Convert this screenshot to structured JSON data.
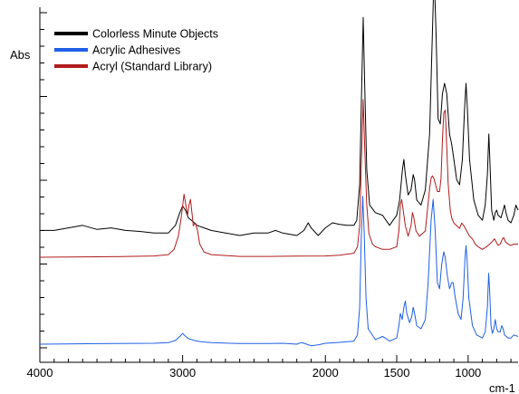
{
  "chart_data": {
    "type": "line",
    "ylabel": "Abs",
    "xlabel": "cm-1",
    "xlim": [
      4000,
      650
    ],
    "x_reversed": true,
    "x_ticks": [
      4000,
      3000,
      2000,
      1500,
      1000
    ],
    "legend_position": "top-left",
    "series": [
      {
        "name": "Colorless Minute Objects",
        "color": "#000000",
        "points": [
          [
            4000,
            0.21
          ],
          [
            3900,
            0.21
          ],
          [
            3800,
            0.215
          ],
          [
            3700,
            0.22
          ],
          [
            3600,
            0.212
          ],
          [
            3500,
            0.215
          ],
          [
            3400,
            0.21
          ],
          [
            3300,
            0.208
          ],
          [
            3200,
            0.205
          ],
          [
            3100,
            0.205
          ],
          [
            3050,
            0.22
          ],
          [
            3020,
            0.245
          ],
          [
            3000,
            0.258
          ],
          [
            2980,
            0.25
          ],
          [
            2960,
            0.235
          ],
          [
            2930,
            0.228
          ],
          [
            2900,
            0.22
          ],
          [
            2850,
            0.215
          ],
          [
            2800,
            0.21
          ],
          [
            2700,
            0.205
          ],
          [
            2600,
            0.2
          ],
          [
            2500,
            0.205
          ],
          [
            2400,
            0.205
          ],
          [
            2350,
            0.21
          ],
          [
            2300,
            0.205
          ],
          [
            2200,
            0.2
          ],
          [
            2150,
            0.21
          ],
          [
            2120,
            0.225
          ],
          [
            2100,
            0.215
          ],
          [
            2050,
            0.2
          ],
          [
            2000,
            0.215
          ],
          [
            1950,
            0.225
          ],
          [
            1900,
            0.222
          ],
          [
            1850,
            0.22
          ],
          [
            1800,
            0.22
          ],
          [
            1780,
            0.23
          ],
          [
            1760,
            0.3
          ],
          [
            1745,
            0.5
          ],
          [
            1735,
            0.63
          ],
          [
            1725,
            0.5
          ],
          [
            1710,
            0.33
          ],
          [
            1690,
            0.26
          ],
          [
            1650,
            0.245
          ],
          [
            1600,
            0.24
          ],
          [
            1550,
            0.22
          ],
          [
            1500,
            0.24
          ],
          [
            1480,
            0.27
          ],
          [
            1460,
            0.33
          ],
          [
            1450,
            0.35
          ],
          [
            1440,
            0.32
          ],
          [
            1420,
            0.28
          ],
          [
            1400,
            0.29
          ],
          [
            1385,
            0.32
          ],
          [
            1375,
            0.31
          ],
          [
            1360,
            0.27
          ],
          [
            1330,
            0.26
          ],
          [
            1300,
            0.29
          ],
          [
            1270,
            0.4
          ],
          [
            1250,
            0.6
          ],
          [
            1238,
            0.72
          ],
          [
            1225,
            0.6
          ],
          [
            1210,
            0.43
          ],
          [
            1195,
            0.42
          ],
          [
            1180,
            0.48
          ],
          [
            1165,
            0.5
          ],
          [
            1150,
            0.48
          ],
          [
            1130,
            0.4
          ],
          [
            1115,
            0.38
          ],
          [
            1100,
            0.35
          ],
          [
            1080,
            0.31
          ],
          [
            1060,
            0.3
          ],
          [
            1040,
            0.35
          ],
          [
            1025,
            0.45
          ],
          [
            1015,
            0.5
          ],
          [
            1005,
            0.45
          ],
          [
            990,
            0.35
          ],
          [
            960,
            0.27
          ],
          [
            930,
            0.24
          ],
          [
            900,
            0.23
          ],
          [
            880,
            0.26
          ],
          [
            865,
            0.32
          ],
          [
            855,
            0.4
          ],
          [
            848,
            0.35
          ],
          [
            835,
            0.25
          ],
          [
            820,
            0.23
          ],
          [
            810,
            0.245
          ],
          [
            800,
            0.25
          ],
          [
            790,
            0.24
          ],
          [
            770,
            0.235
          ],
          [
            760,
            0.245
          ],
          [
            745,
            0.26
          ],
          [
            735,
            0.245
          ],
          [
            720,
            0.23
          ],
          [
            700,
            0.225
          ],
          [
            680,
            0.24
          ],
          [
            665,
            0.26
          ],
          [
            650,
            0.25
          ]
        ]
      },
      {
        "name": "Acrylic Adhesives",
        "color": "#1e5fe6",
        "points": [
          [
            4000,
            0.0
          ],
          [
            3500,
            0.002
          ],
          [
            3200,
            0.003
          ],
          [
            3100,
            0.005
          ],
          [
            3050,
            0.012
          ],
          [
            3020,
            0.025
          ],
          [
            3000,
            0.035
          ],
          [
            2985,
            0.028
          ],
          [
            2960,
            0.018
          ],
          [
            2930,
            0.014
          ],
          [
            2900,
            0.01
          ],
          [
            2850,
            0.007
          ],
          [
            2800,
            0.005
          ],
          [
            2600,
            0.002
          ],
          [
            2400,
            0.002
          ],
          [
            2300,
            0.003
          ],
          [
            2200,
            0.0
          ],
          [
            2170,
            0.005
          ],
          [
            2150,
            0.003
          ],
          [
            2100,
            -0.005
          ],
          [
            2050,
            -0.002
          ],
          [
            2000,
            0.003
          ],
          [
            1900,
            0.006
          ],
          [
            1800,
            0.01
          ],
          [
            1775,
            0.03
          ],
          [
            1760,
            0.12
          ],
          [
            1748,
            0.35
          ],
          [
            1738,
            0.48
          ],
          [
            1728,
            0.36
          ],
          [
            1715,
            0.15
          ],
          [
            1700,
            0.05
          ],
          [
            1650,
            0.015
          ],
          [
            1600,
            0.025
          ],
          [
            1580,
            0.02
          ],
          [
            1550,
            0.01
          ],
          [
            1500,
            0.02
          ],
          [
            1485,
            0.06
          ],
          [
            1475,
            0.1
          ],
          [
            1462,
            0.08
          ],
          [
            1450,
            0.12
          ],
          [
            1440,
            0.14
          ],
          [
            1430,
            0.1
          ],
          [
            1410,
            0.07
          ],
          [
            1395,
            0.09
          ],
          [
            1385,
            0.12
          ],
          [
            1375,
            0.1
          ],
          [
            1360,
            0.06
          ],
          [
            1330,
            0.05
          ],
          [
            1300,
            0.08
          ],
          [
            1280,
            0.2
          ],
          [
            1260,
            0.4
          ],
          [
            1245,
            0.47
          ],
          [
            1232,
            0.38
          ],
          [
            1215,
            0.2
          ],
          [
            1200,
            0.18
          ],
          [
            1185,
            0.26
          ],
          [
            1170,
            0.3
          ],
          [
            1160,
            0.28
          ],
          [
            1145,
            0.22
          ],
          [
            1130,
            0.18
          ],
          [
            1115,
            0.2
          ],
          [
            1105,
            0.2
          ],
          [
            1090,
            0.15
          ],
          [
            1070,
            0.1
          ],
          [
            1050,
            0.08
          ],
          [
            1035,
            0.15
          ],
          [
            1022,
            0.28
          ],
          [
            1015,
            0.32
          ],
          [
            1008,
            0.28
          ],
          [
            995,
            0.15
          ],
          [
            970,
            0.06
          ],
          [
            940,
            0.03
          ],
          [
            900,
            0.02
          ],
          [
            880,
            0.04
          ],
          [
            865,
            0.12
          ],
          [
            856,
            0.23
          ],
          [
            850,
            0.18
          ],
          [
            840,
            0.06
          ],
          [
            830,
            0.035
          ],
          [
            820,
            0.05
          ],
          [
            810,
            0.08
          ],
          [
            800,
            0.05
          ],
          [
            790,
            0.04
          ],
          [
            775,
            0.04
          ],
          [
            765,
            0.06
          ],
          [
            755,
            0.05
          ],
          [
            745,
            0.03
          ],
          [
            720,
            0.02
          ],
          [
            700,
            0.02
          ],
          [
            680,
            0.03
          ],
          [
            650,
            0.025
          ]
        ]
      },
      {
        "name": "Acryl (Standard Library)",
        "color": "#b01c1c",
        "points": [
          [
            4000,
            0.0
          ],
          [
            3500,
            0.002
          ],
          [
            3200,
            0.005
          ],
          [
            3100,
            0.01
          ],
          [
            3060,
            0.03
          ],
          [
            3030,
            0.08
          ],
          [
            3010,
            0.15
          ],
          [
            2990,
            0.24
          ],
          [
            2978,
            0.2
          ],
          [
            2965,
            0.16
          ],
          [
            2955,
            0.2
          ],
          [
            2945,
            0.22
          ],
          [
            2935,
            0.17
          ],
          [
            2925,
            0.12
          ],
          [
            2910,
            0.13
          ],
          [
            2895,
            0.1
          ],
          [
            2880,
            0.05
          ],
          [
            2850,
            0.02
          ],
          [
            2800,
            0.01
          ],
          [
            2600,
            0.003
          ],
          [
            2400,
            0.003
          ],
          [
            2200,
            0.004
          ],
          [
            2000,
            0.005
          ],
          [
            1900,
            0.008
          ],
          [
            1800,
            0.015
          ],
          [
            1775,
            0.04
          ],
          [
            1760,
            0.12
          ],
          [
            1748,
            0.35
          ],
          [
            1735,
            0.6
          ],
          [
            1725,
            0.42
          ],
          [
            1710,
            0.2
          ],
          [
            1695,
            0.09
          ],
          [
            1670,
            0.05
          ],
          [
            1650,
            0.04
          ],
          [
            1600,
            0.03
          ],
          [
            1550,
            0.03
          ],
          [
            1500,
            0.04
          ],
          [
            1485,
            0.1
          ],
          [
            1475,
            0.2
          ],
          [
            1465,
            0.22
          ],
          [
            1455,
            0.18
          ],
          [
            1440,
            0.12
          ],
          [
            1420,
            0.08
          ],
          [
            1400,
            0.12
          ],
          [
            1390,
            0.17
          ],
          [
            1380,
            0.15
          ],
          [
            1365,
            0.1
          ],
          [
            1340,
            0.08
          ],
          [
            1300,
            0.1
          ],
          [
            1285,
            0.18
          ],
          [
            1270,
            0.26
          ],
          [
            1260,
            0.3
          ],
          [
            1250,
            0.31
          ],
          [
            1240,
            0.3
          ],
          [
            1230,
            0.28
          ],
          [
            1215,
            0.25
          ],
          [
            1200,
            0.25
          ],
          [
            1190,
            0.3
          ],
          [
            1180,
            0.45
          ],
          [
            1170,
            0.55
          ],
          [
            1160,
            0.56
          ],
          [
            1152,
            0.45
          ],
          [
            1140,
            0.28
          ],
          [
            1125,
            0.18
          ],
          [
            1115,
            0.15
          ],
          [
            1100,
            0.13
          ],
          [
            1080,
            0.12
          ],
          [
            1060,
            0.11
          ],
          [
            1045,
            0.13
          ],
          [
            1030,
            0.12
          ],
          [
            1010,
            0.1
          ],
          [
            990,
            0.08
          ],
          [
            970,
            0.07
          ],
          [
            950,
            0.05
          ],
          [
            930,
            0.04
          ],
          [
            900,
            0.03
          ],
          [
            870,
            0.04
          ],
          [
            850,
            0.05
          ],
          [
            830,
            0.06
          ],
          [
            815,
            0.07
          ],
          [
            800,
            0.055
          ],
          [
            790,
            0.045
          ],
          [
            775,
            0.05
          ],
          [
            760,
            0.07
          ],
          [
            750,
            0.075
          ],
          [
            740,
            0.06
          ],
          [
            720,
            0.05
          ],
          [
            700,
            0.045
          ],
          [
            680,
            0.05
          ],
          [
            650,
            0.05
          ]
        ]
      }
    ]
  }
}
